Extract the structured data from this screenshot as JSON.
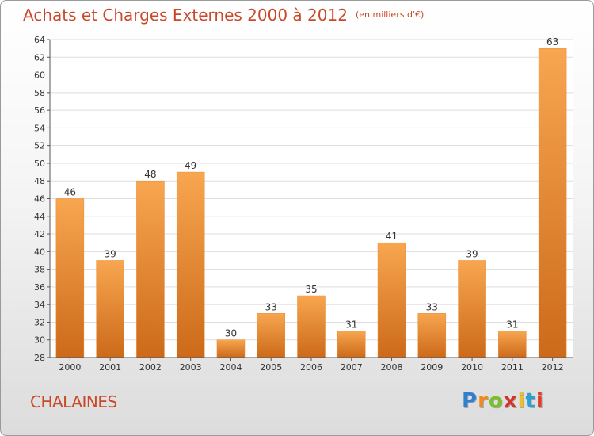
{
  "chart_data": {
    "type": "bar",
    "title": "Achats et Charges Externes 2000 à 2012",
    "subtitle": "(en milliers d'€)",
    "categories": [
      "2000",
      "2001",
      "2002",
      "2003",
      "2004",
      "2005",
      "2006",
      "2007",
      "2008",
      "2009",
      "2010",
      "2011",
      "2012"
    ],
    "values": [
      46,
      39,
      48,
      49,
      30,
      33,
      35,
      31,
      41,
      33,
      39,
      31,
      63
    ],
    "ylim": [
      28,
      64
    ],
    "yticks": [
      28,
      30,
      32,
      34,
      36,
      38,
      40,
      42,
      44,
      46,
      48,
      50,
      52,
      54,
      56,
      58,
      60,
      62,
      64
    ],
    "grid": true,
    "bar_color": "#f0902f"
  },
  "footer": {
    "commune": "CHALAINES",
    "brand": [
      "P",
      "r",
      "o",
      "x",
      "i",
      "t",
      "i"
    ],
    "brand_colors": [
      "#2f7fd0",
      "#f08a1c",
      "#7bbf2a",
      "#d6332a",
      "#f0c020",
      "#2f9fd0",
      "#e0402a"
    ]
  }
}
